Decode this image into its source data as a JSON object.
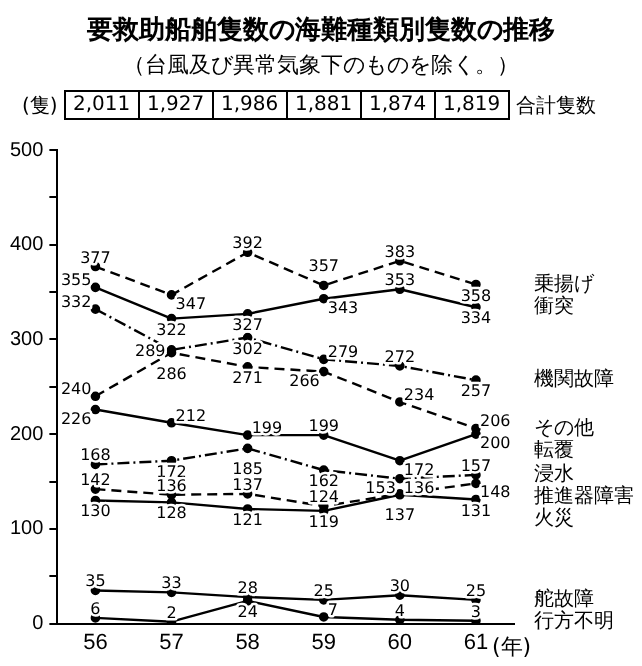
{
  "chart_data": {
    "type": "line",
    "title": "要救助船舶隻数の海難種類別隻数の推移",
    "subtitle": "（台風及び異常気象下のものを除く。）",
    "ylabel": "(隻)",
    "xlabel": "(年)",
    "annotations": [
      "2,011",
      "1,927",
      "1,986",
      "1,881",
      "1,874",
      "1,819",
      "合計隻数"
    ],
    "categories": [
      "56",
      "57",
      "58",
      "59",
      "60",
      "61"
    ],
    "ylim": [
      0,
      500
    ],
    "yticks": [
      0,
      {
        "value": 50,
        "label": null
      },
      100,
      {
        "value": 150,
        "label": null
      },
      200,
      {
        "value": 250,
        "label": null
      },
      300,
      {
        "value": 350,
        "label": null
      },
      400,
      {
        "value": 450,
        "label": null
      },
      500
    ],
    "grid": false,
    "legend": false,
    "data_labels": true,
    "marker": "circle",
    "series": [
      {
        "name": "乗揚げ",
        "color": "#000000",
        "line_style": "dashed",
        "values": [
          377,
          347,
          392,
          357,
          383,
          358
        ]
      },
      {
        "name": "衝突",
        "color": "#000000",
        "line_style": "solid",
        "values": [
          355,
          322,
          327,
          343,
          353,
          334
        ]
      },
      {
        "name": "機関故障",
        "color": "#000000",
        "line_style": "dashdot",
        "values": [
          332,
          289,
          302,
          279,
          272,
          257
        ]
      },
      {
        "name": "その他",
        "color": "#000000",
        "line_style": "dashed",
        "values": [
          240,
          286,
          271,
          266,
          234,
          206
        ]
      },
      {
        "name": "転覆",
        "color": "#000000",
        "line_style": "solid",
        "values": [
          226,
          212,
          199,
          199,
          172,
          200
        ]
      },
      {
        "name": "浸水",
        "color": "#000000",
        "line_style": "dashdot",
        "values": [
          168,
          172,
          185,
          162,
          153,
          157
        ]
      },
      {
        "name": "推進器障害",
        "color": "#000000",
        "line_style": "dashed",
        "values": [
          142,
          136,
          137,
          124,
          137,
          148
        ]
      },
      {
        "name": "火災",
        "color": "#000000",
        "line_style": "solid",
        "values": [
          130,
          128,
          121,
          119,
          136,
          131
        ]
      },
      {
        "name": "舵故障",
        "color": "#000000",
        "line_style": "solid",
        "values": [
          35,
          33,
          28,
          25,
          30,
          25
        ]
      },
      {
        "name": "行方不明",
        "color": "#000000",
        "line_style": "solid",
        "values": [
          6,
          2,
          24,
          7,
          4,
          3
        ]
      }
    ]
  }
}
